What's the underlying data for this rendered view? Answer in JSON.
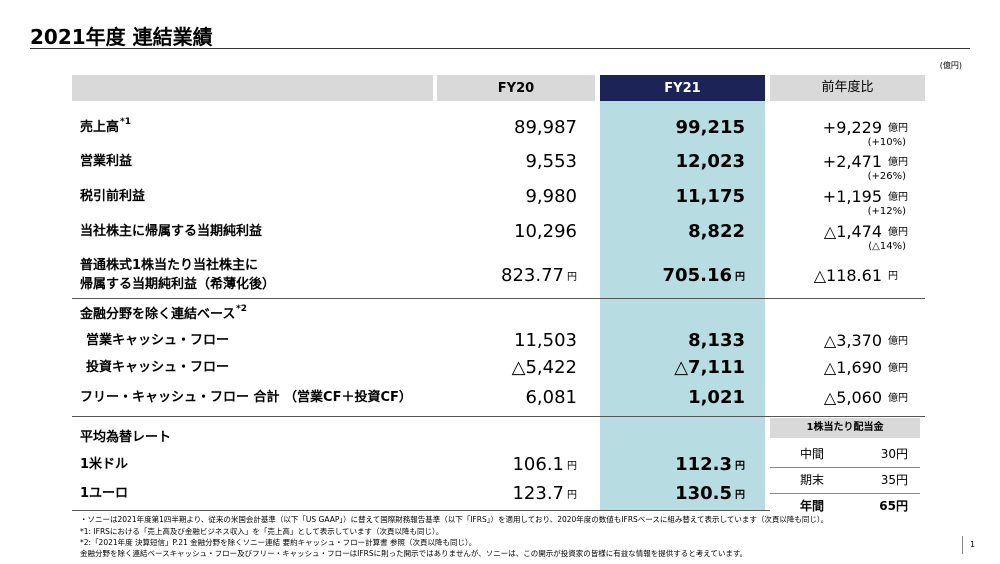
{
  "header": {
    "title": "2021年度 連結業績",
    "unit": "(億円)"
  },
  "table": {
    "columns": [
      "FY20",
      "FY21",
      "前年度比"
    ],
    "sections": [
      {
        "rows": [
          {
            "label": "売上高",
            "note": "*1",
            "fy20": "89,987",
            "fy21": "99,215",
            "change": "+9,229",
            "change_unit": "億円",
            "change_pct": "(+10%)"
          },
          {
            "label": "営業利益",
            "fy20": "9,553",
            "fy21": "12,023",
            "change": "+2,471",
            "change_unit": "億円",
            "change_pct": "(+26%)"
          },
          {
            "label": "税引前利益",
            "fy20": "9,980",
            "fy21": "11,175",
            "change": "+1,195",
            "change_unit": "億円",
            "change_pct": "(+12%)"
          },
          {
            "label": "当社株主に帰属する当期純利益",
            "fy20": "10,296",
            "fy21": "8,822",
            "change": "△1,474",
            "change_unit": "億円",
            "change_pct": "(△14%)"
          },
          {
            "label": [
              "普通株式1株当たり当社株主に",
              "帰属する当期純利益（希薄化後）"
            ],
            "fy20": "823.77",
            "fy20_unit": "円",
            "fy21": "705.16",
            "fy21_unit": "円",
            "change": "△118.61",
            "change_unit": "円"
          }
        ]
      },
      {
        "title": "金融分野を除く連結ベース",
        "note": "*2",
        "rows": [
          {
            "label": "営業キャッシュ・フロー",
            "fy20": "11,503",
            "fy21": "8,133",
            "change": "△3,370",
            "change_unit": "億円"
          },
          {
            "label": "投資キャッシュ・フロー",
            "fy20": "△5,422",
            "fy21": "△7,111",
            "change": "△1,690",
            "change_unit": "億円"
          },
          {
            "label": "フリー・キャッシュ・フロー 合計 （営業CF＋投資CF）",
            "fy20": "6,081",
            "fy21": "1,021",
            "change": "△5,060",
            "change_unit": "億円"
          }
        ]
      },
      {
        "title": "平均為替レート",
        "rows": [
          {
            "label": "1米ドル",
            "fy20": "106.1",
            "fy20_unit": "円",
            "fy21": "112.3",
            "fy21_unit": "円"
          },
          {
            "label": "1ユーロ",
            "fy20": "123.7",
            "fy20_unit": "円",
            "fy21": "130.5",
            "fy21_unit": "円"
          }
        ]
      }
    ]
  },
  "dividend": {
    "title": "1株当たり配当金",
    "rows": [
      {
        "label": "中間",
        "value": "30円"
      },
      {
        "label": "期末",
        "value": "35円"
      },
      {
        "label": "年間",
        "value": "65円"
      }
    ]
  },
  "footnotes": [
    "・ソニーは2021年度第1四半期より、従来の米国会計基準（以下「US GAAP」）に替えて国際財務報告基準（以下「IFRS」）を適用しており、2020年度の数値もIFRSベースに組み替えて表示しています（次頁以降も同じ）。",
    "*1: IFRSにおける「売上高及び金融ビジネス収入」を「売上高」として表示しています（次頁以降も同じ）。",
    "*2:「2021年度 決算短信」P.21 金融分野を除くソニー連結 要約キャッシュ・フロー計算書 参照（次頁以降も同じ）。",
    "金融分野を除く連結ベースキャッシュ・フロー及びフリー・キャッシュ・フローはIFRSに則った開示ではありませんが、ソニーは、この開示が投資家の皆様に有益な情報を提供すると考えています。"
  ],
  "page_number": "1"
}
